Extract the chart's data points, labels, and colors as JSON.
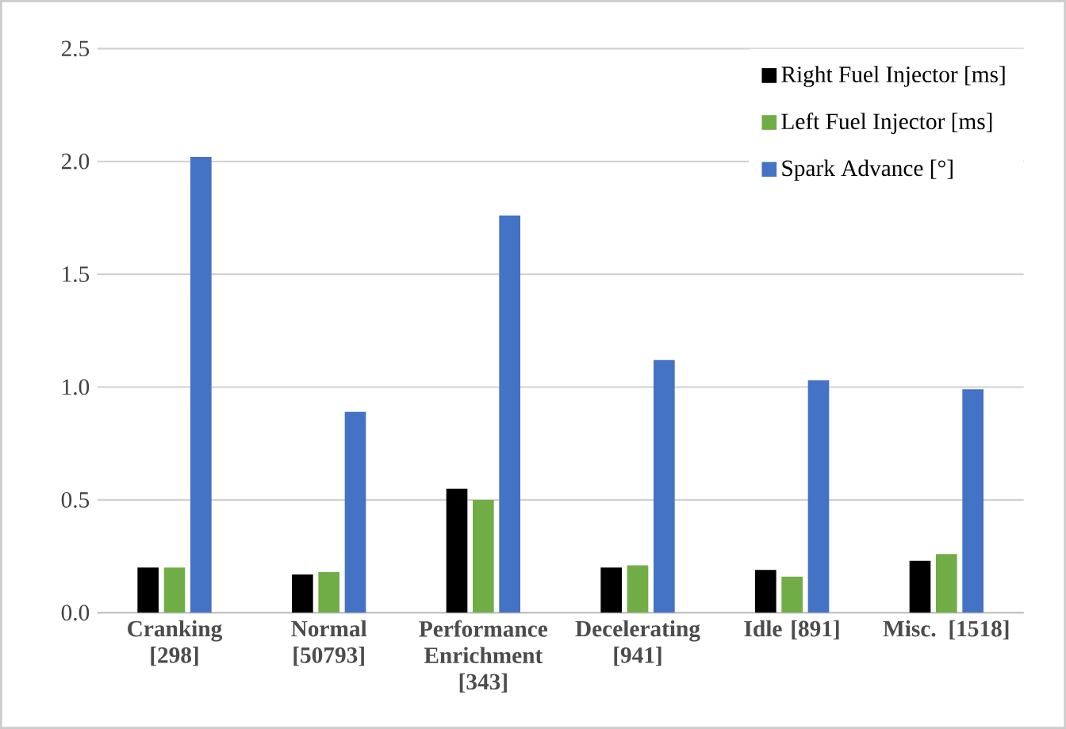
{
  "chart_data": {
    "type": "bar",
    "categories": [
      "Cranking [298]",
      "Normal [50793]",
      "Performance Enrichment [343]",
      "Decelerating [941]",
      "Idle [891]",
      "Misc. [1518]"
    ],
    "series": [
      {
        "name": "Right Fuel Injector [ms]",
        "color": "#000000",
        "values": [
          0.2,
          0.17,
          0.55,
          0.2,
          0.19,
          0.23
        ]
      },
      {
        "name": "Left Fuel Injector [ms]",
        "color": "#70ad47",
        "values": [
          0.2,
          0.18,
          0.5,
          0.21,
          0.16,
          0.26
        ]
      },
      {
        "name": "Spark Advance [°]",
        "color": "#4472c4",
        "values": [
          2.02,
          0.89,
          1.76,
          1.12,
          1.03,
          0.99
        ]
      }
    ],
    "ylim": [
      0,
      2.5
    ],
    "yticks": [
      {
        "value": 0,
        "label": "0.0"
      },
      0.5,
      {
        "value": 1,
        "label": "1.0"
      },
      1.5,
      {
        "value": 2,
        "label": "2.0"
      },
      2.5
    ],
    "grid": "y",
    "legend": "top right"
  }
}
